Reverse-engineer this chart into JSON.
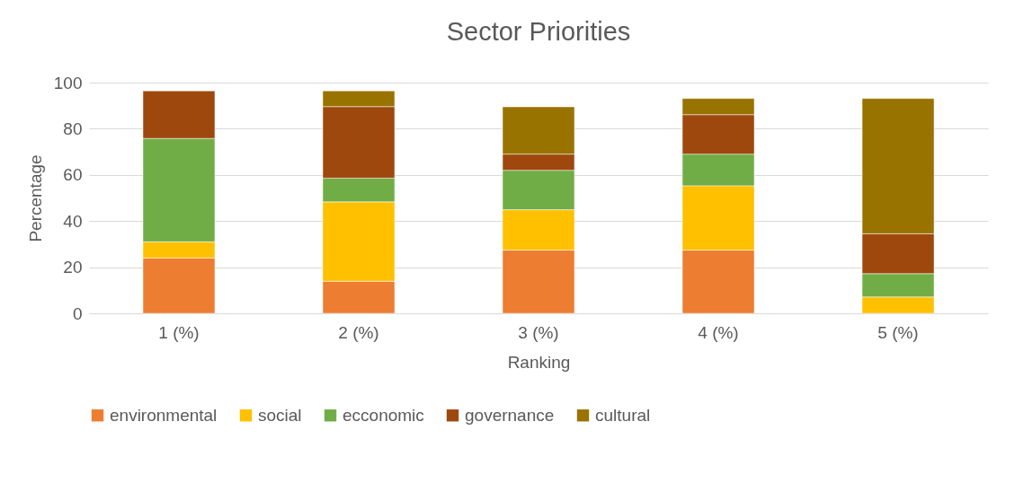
{
  "chart_data": {
    "type": "bar",
    "title": "Sector Priorities",
    "xlabel": "Ranking",
    "ylabel": "Percentage",
    "categories": [
      "1 (%)",
      "2 (%)",
      "3 (%)",
      "4 (%)",
      "5 (%)"
    ],
    "stacked": true,
    "series": [
      {
        "name": "environmental",
        "color": "#ed7d31",
        "values": [
          24,
          13.9,
          27.4,
          27.4,
          0
        ]
      },
      {
        "name": "social",
        "color": "#ffc000",
        "values": [
          7,
          34.4,
          17.5,
          27.9,
          7.1
        ]
      },
      {
        "name": "ecconomic",
        "color": "#70ad47",
        "values": [
          44.8,
          10.3,
          17.1,
          13.7,
          10.1
        ]
      },
      {
        "name": "governance",
        "color": "#9e480e",
        "values": [
          20.6,
          31,
          7,
          17.1,
          17.3
        ]
      },
      {
        "name": "cultural",
        "color": "#997300",
        "values": [
          0,
          6.8,
          20.5,
          7,
          58.6
        ]
      }
    ],
    "ylim": [
      0,
      100
    ],
    "yticks": [
      0,
      20,
      40,
      60,
      80,
      100
    ],
    "grid": "y",
    "legend": "bottom"
  }
}
